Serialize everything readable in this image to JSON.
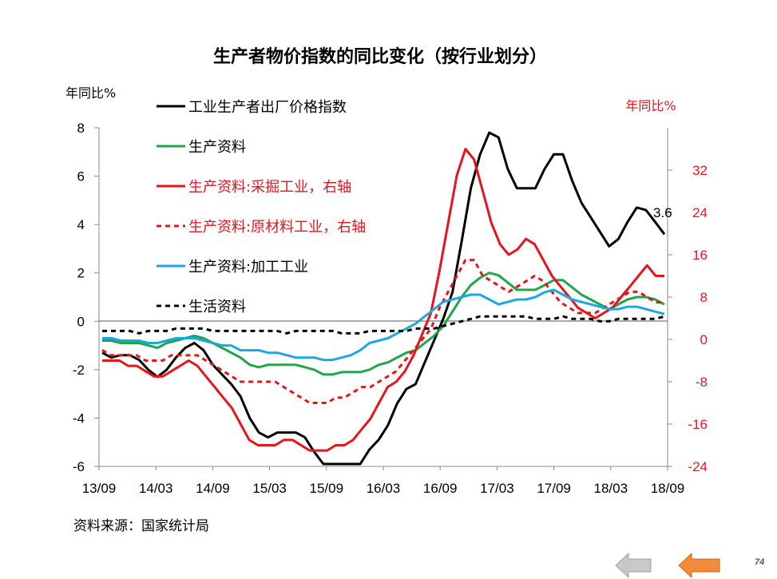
{
  "chart_data": {
    "type": "line",
    "title": "生产者物价指数的同比变化（按行业划分）",
    "ylabel_left": "年同比%",
    "ylabel_right": "年同比%",
    "ylim_left": [
      -6,
      8
    ],
    "ylim_right": [
      -24,
      40
    ],
    "yticks_left": [
      8,
      6,
      4,
      2,
      0,
      -2,
      -4,
      -6
    ],
    "yticks_right": [
      32,
      24,
      16,
      8,
      0,
      -8,
      -16,
      -24
    ],
    "x_labels": [
      "13/09",
      "14/03",
      "14/09",
      "15/03",
      "15/09",
      "16/03",
      "16/09",
      "17/03",
      "17/09",
      "18/03",
      "18/09"
    ],
    "grid": false,
    "legend_position": "top-left",
    "annotation": {
      "text": "3.6",
      "series": "工业生产者出厂价格指数"
    },
    "series": [
      {
        "name": "工业生产者出厂价格指数",
        "axis": "left",
        "color": "#000000",
        "dash": false,
        "values": [
          -1.3,
          -1.5,
          -1.4,
          -1.4,
          -1.6,
          -2.0,
          -2.3,
          -2.0,
          -1.5,
          -1.1,
          -0.9,
          -1.2,
          -1.8,
          -2.2,
          -2.6,
          -3.1,
          -4.0,
          -4.6,
          -4.8,
          -4.6,
          -4.6,
          -4.6,
          -4.8,
          -5.4,
          -5.9,
          -5.9,
          -5.9,
          -5.9,
          -5.9,
          -5.3,
          -4.9,
          -4.3,
          -3.4,
          -2.8,
          -2.6,
          -1.7,
          -0.8,
          0.1,
          1.2,
          3.3,
          5.5,
          6.9,
          7.8,
          7.6,
          6.3,
          5.5,
          5.5,
          5.5,
          6.3,
          6.9,
          6.9,
          5.8,
          4.9,
          4.3,
          3.7,
          3.1,
          3.4,
          4.1,
          4.7,
          4.6,
          4.1,
          3.6
        ]
      },
      {
        "name": "生产资料",
        "axis": "left",
        "color": "#1fa64a",
        "dash": false,
        "values": [
          -0.8,
          -0.8,
          -0.9,
          -0.9,
          -0.9,
          -1.0,
          -1.1,
          -0.9,
          -0.8,
          -0.7,
          -0.6,
          -0.7,
          -0.9,
          -1.1,
          -1.3,
          -1.5,
          -1.8,
          -1.9,
          -1.8,
          -1.8,
          -1.8,
          -1.8,
          -1.9,
          -2.0,
          -2.2,
          -2.2,
          -2.1,
          -2.1,
          -2.1,
          -2.0,
          -1.8,
          -1.7,
          -1.5,
          -1.3,
          -1.2,
          -0.9,
          -0.6,
          -0.2,
          0.4,
          1.0,
          1.5,
          1.8,
          2.0,
          1.9,
          1.6,
          1.3,
          1.3,
          1.3,
          1.5,
          1.7,
          1.7,
          1.4,
          1.1,
          0.9,
          0.7,
          0.5,
          0.7,
          0.9,
          1.0,
          1.0,
          0.9,
          0.7
        ]
      },
      {
        "name": "生产资料:采掘工业，右轴",
        "axis": "right",
        "color": "#e8141c",
        "dash": false,
        "values": [
          -4,
          -4,
          -4,
          -5,
          -5,
          -6,
          -7,
          -7,
          -6,
          -5,
          -4,
          -5,
          -7,
          -9,
          -11,
          -13,
          -16,
          -19,
          -20,
          -20,
          -20,
          -19,
          -19,
          -20,
          -21,
          -21,
          -21,
          -20,
          -20,
          -19,
          -17,
          -15,
          -12,
          -9,
          -8,
          -6,
          -3,
          1,
          5,
          13,
          22,
          31,
          36,
          34,
          28,
          22,
          18,
          16,
          17,
          19,
          18,
          15,
          12,
          10,
          8,
          6,
          5,
          4,
          5,
          6,
          8,
          10,
          12,
          14,
          12,
          12
        ]
      },
      {
        "name": "生产资料:原材料工业，右轴",
        "axis": "right",
        "color": "#e8141c",
        "dash": true,
        "values": [
          -2,
          -3,
          -3,
          -3,
          -3,
          -4,
          -4,
          -4,
          -3,
          -3,
          -3,
          -3,
          -4,
          -5,
          -6,
          -7,
          -8,
          -8,
          -8,
          -8,
          -8,
          -9,
          -10,
          -11,
          -12,
          -12,
          -12,
          -11,
          -11,
          -10,
          -9,
          -9,
          -8,
          -7,
          -6,
          -4,
          -2,
          0,
          2,
          6,
          9,
          12,
          15,
          15,
          12,
          11,
          10,
          9,
          10,
          11,
          12,
          11,
          9,
          7,
          6,
          5,
          5,
          5,
          6,
          7,
          8,
          9,
          9,
          8,
          7,
          7
        ]
      },
      {
        "name": "生产资料:加工工业",
        "axis": "left",
        "color": "#1ea6e0",
        "dash": false,
        "values": [
          -0.7,
          -0.7,
          -0.8,
          -0.8,
          -0.8,
          -0.9,
          -0.9,
          -0.8,
          -0.7,
          -0.7,
          -0.7,
          -0.8,
          -0.9,
          -1.0,
          -1.0,
          -1.2,
          -1.2,
          -1.2,
          -1.3,
          -1.3,
          -1.4,
          -1.5,
          -1.5,
          -1.5,
          -1.6,
          -1.6,
          -1.5,
          -1.4,
          -1.2,
          -0.9,
          -0.8,
          -0.7,
          -0.5,
          -0.3,
          -0.1,
          0.2,
          0.5,
          0.8,
          0.9,
          1.0,
          1.1,
          1.1,
          0.9,
          0.7,
          0.8,
          0.9,
          0.9,
          1.0,
          1.2,
          1.3,
          1.1,
          0.9,
          0.8,
          0.7,
          0.6,
          0.5,
          0.5,
          0.6,
          0.6,
          0.5,
          0.4,
          0.3
        ]
      },
      {
        "name": "生活资料",
        "axis": "left",
        "color": "#000000",
        "dash": true,
        "values": [
          -0.4,
          -0.4,
          -0.4,
          -0.4,
          -0.5,
          -0.4,
          -0.4,
          -0.4,
          -0.3,
          -0.3,
          -0.3,
          -0.3,
          -0.4,
          -0.4,
          -0.4,
          -0.4,
          -0.4,
          -0.4,
          -0.4,
          -0.4,
          -0.5,
          -0.4,
          -0.4,
          -0.4,
          -0.4,
          -0.4,
          -0.5,
          -0.5,
          -0.5,
          -0.4,
          -0.4,
          -0.4,
          -0.4,
          -0.4,
          -0.3,
          -0.3,
          -0.3,
          -0.2,
          -0.1,
          0.0,
          0.1,
          0.2,
          0.2,
          0.2,
          0.2,
          0.2,
          0.2,
          0.1,
          0.1,
          0.1,
          0.2,
          0.1,
          0.1,
          0.1,
          0.0,
          0.0,
          0.1,
          0.1,
          0.1,
          0.1,
          0.1,
          0.2
        ]
      }
    ]
  },
  "source_note": "资料来源：国家统计局",
  "nav": {
    "prev_label": "previous",
    "next_label": "next"
  },
  "page_number": "74",
  "colors": {
    "right_axis": "#e8141c",
    "prev_arrow": "#c8c8c8",
    "next_arrow": "#f08c3c"
  }
}
